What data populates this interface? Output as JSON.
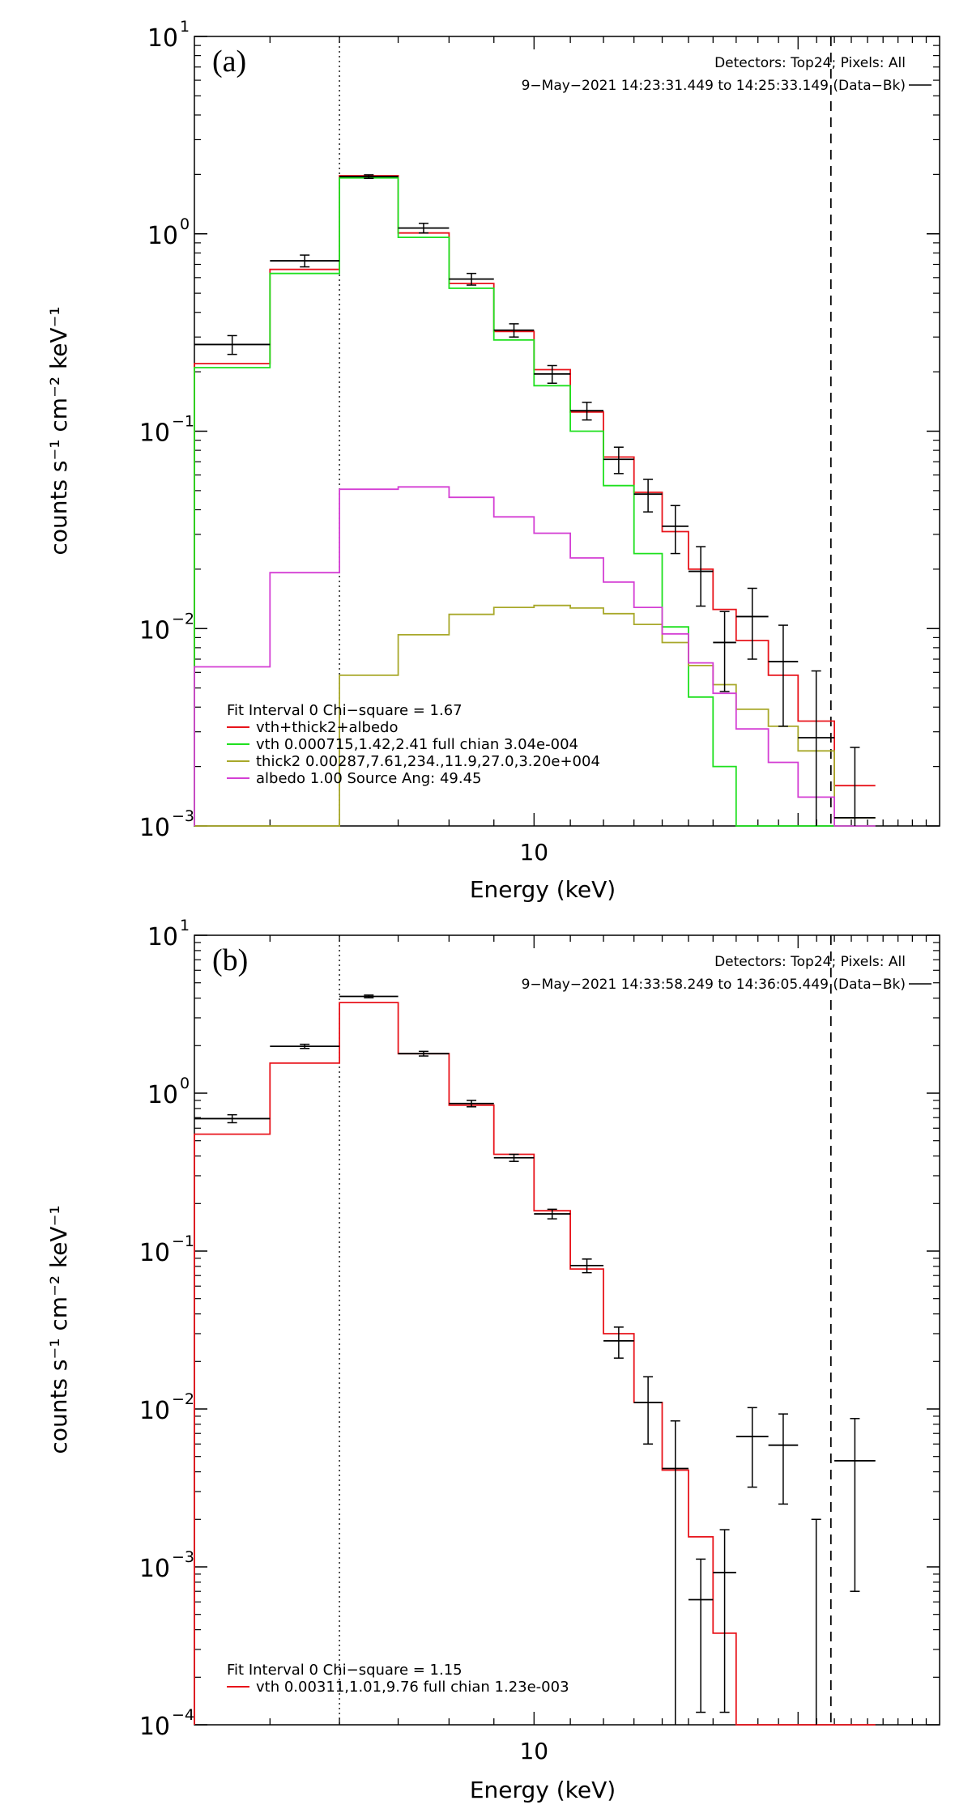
{
  "chart_data": [
    {
      "type": "line",
      "panel_label": "(a)",
      "xlabel": "Energy (keV)",
      "ylabel": "counts s⁻¹ cm⁻² keV⁻¹",
      "x_scale": "log",
      "y_scale": "log",
      "xlim": [
        4.1,
        29.0
      ],
      "ylim": [
        0.001,
        10
      ],
      "x_ticks": [
        {
          "value": 10,
          "label": "10"
        }
      ],
      "y_ticks": [
        {
          "value": 10,
          "base": "10",
          "exp": "1"
        },
        {
          "value": 1,
          "base": "10",
          "exp": "0"
        },
        {
          "value": 0.1,
          "base": "10",
          "exp": "−1"
        },
        {
          "value": 0.01,
          "base": "10",
          "exp": "−2"
        },
        {
          "value": 0.001,
          "base": "10",
          "exp": "−3"
        }
      ],
      "header": [
        "Detectors: Top24; Pixels: All",
        "9−May−2021 14:23:31.449 to 14:25:33.149 (Data−Bk)"
      ],
      "vertical_lines": [
        {
          "x": 6.0,
          "style": "dotted"
        },
        {
          "x": 21.8,
          "style": "dashed"
        }
      ],
      "bin_edges": [
        4.1,
        5.0,
        6.0,
        7.0,
        8.0,
        9.0,
        10.0,
        11.0,
        12.0,
        13.0,
        14.0,
        15.0,
        16.0,
        17.0,
        18.5,
        20.0,
        22.0,
        24.5,
        27.0,
        29.0
      ],
      "series": [
        {
          "name": "Data−Bk",
          "kind": "data",
          "color": "#000000",
          "values": [
            0.275,
            0.73,
            1.95,
            1.07,
            0.59,
            0.325,
            0.195,
            0.127,
            0.072,
            0.048,
            0.033,
            0.0195,
            0.0085,
            0.0115,
            0.0068,
            0.0028,
            0.0011
          ],
          "errors": [
            0.03,
            0.05,
            0.04,
            0.06,
            0.04,
            0.025,
            0.02,
            0.013,
            0.011,
            0.009,
            0.009,
            0.0065,
            0.0037,
            0.0045,
            0.0036,
            0.0033,
            0.0014
          ]
        },
        {
          "name": "vth+thick2+albedo",
          "kind": "model",
          "color": "#e8141b",
          "values": [
            0.22,
            0.66,
            1.97,
            1.01,
            0.56,
            0.32,
            0.205,
            0.125,
            0.074,
            0.049,
            0.031,
            0.02,
            0.0125,
            0.0087,
            0.0058,
            0.0034,
            0.0016
          ]
        },
        {
          "name": "vth 0.000715,1.42,2.41  full chian 3.04e-004",
          "kind": "model",
          "color": "#1fe01f",
          "values": [
            0.21,
            0.63,
            1.92,
            0.96,
            0.53,
            0.29,
            0.17,
            0.1,
            0.053,
            0.024,
            0.0102,
            0.0045,
            0.002,
            0.0009,
            0.0009,
            0.0009,
            0.0009
          ]
        },
        {
          "name": "thick2 0.00287,7.61,234.,11.9,27.0,3.20e+004",
          "kind": "model",
          "color": "#a8a82a",
          "values": [
            0.0009,
            0.0009,
            0.0058,
            0.0093,
            0.0118,
            0.0128,
            0.0131,
            0.0127,
            0.0119,
            0.0105,
            0.0085,
            0.0065,
            0.0052,
            0.0039,
            0.0032,
            0.0024,
            0.0011
          ]
        },
        {
          "name": "albedo 1.00 Source Ang: 49.45",
          "kind": "model",
          "color": "#d43fd4",
          "values": [
            0.0064,
            0.0192,
            0.0508,
            0.0522,
            0.0462,
            0.0368,
            0.0304,
            0.0228,
            0.0172,
            0.0128,
            0.0094,
            0.0067,
            0.0047,
            0.0031,
            0.0021,
            0.0014,
            0.001
          ]
        }
      ],
      "legend_title": "Fit Interval 0    Chi−square = 1.67"
    },
    {
      "type": "line",
      "panel_label": "(b)",
      "xlabel": "Energy (keV)",
      "ylabel": "counts s⁻¹ cm⁻² keV⁻¹",
      "x_scale": "log",
      "y_scale": "log",
      "xlim": [
        4.1,
        29.0
      ],
      "ylim": [
        0.0001,
        10
      ],
      "x_ticks": [
        {
          "value": 10,
          "label": "10"
        }
      ],
      "y_ticks": [
        {
          "value": 10,
          "base": "10",
          "exp": "1"
        },
        {
          "value": 1,
          "base": "10",
          "exp": "0"
        },
        {
          "value": 0.1,
          "base": "10",
          "exp": "−1"
        },
        {
          "value": 0.01,
          "base": "10",
          "exp": "−2"
        },
        {
          "value": 0.001,
          "base": "10",
          "exp": "−3"
        },
        {
          "value": 0.0001,
          "base": "10",
          "exp": "−4"
        }
      ],
      "header": [
        "Detectors: Top24; Pixels: All",
        "9−May−2021 14:33:58.249 to 14:36:05.449 (Data−Bk)"
      ],
      "vertical_lines": [
        {
          "x": 6.0,
          "style": "dotted"
        },
        {
          "x": 21.8,
          "style": "dashed"
        }
      ],
      "bin_edges": [
        4.1,
        5.0,
        6.0,
        7.0,
        8.0,
        9.0,
        10.0,
        11.0,
        12.0,
        13.0,
        14.0,
        15.0,
        16.0,
        17.0,
        18.5,
        20.0,
        22.0,
        24.5,
        27.0,
        29.0
      ],
      "series": [
        {
          "name": "Data−Bk",
          "kind": "data",
          "color": "#000000",
          "values": [
            0.69,
            1.98,
            4.1,
            1.78,
            0.86,
            0.39,
            0.172,
            0.081,
            0.027,
            0.011,
            0.0042,
            0.00062,
            0.00092,
            0.0067,
            0.0059,
            null,
            0.0047
          ],
          "errors": [
            0.04,
            0.06,
            0.08,
            0.06,
            0.04,
            0.02,
            0.012,
            0.008,
            0.006,
            0.005,
            0.0042,
            0.0005,
            0.0008,
            0.0035,
            0.0034,
            0.001,
            0.004
          ]
        },
        {
          "name": "vth 0.00311,1.01,9.76  full chian 1.23e-003",
          "kind": "model",
          "color": "#e8141b",
          "values": [
            0.55,
            1.55,
            3.75,
            1.78,
            0.84,
            0.41,
            0.18,
            0.077,
            0.03,
            0.011,
            0.0041,
            0.00155,
            0.00038,
            0.0001,
            0.0001,
            0.0001,
            0.0001
          ]
        }
      ],
      "legend_title": "Fit Interval 0    Chi−square = 1.15"
    }
  ]
}
